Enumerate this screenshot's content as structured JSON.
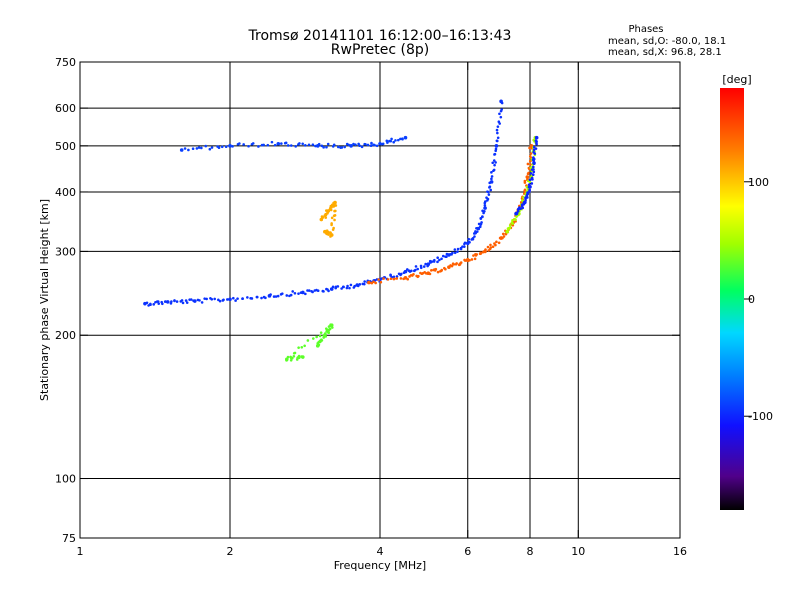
{
  "chart_data": {
    "type": "scatter",
    "title": "Tromsø 20141101 16:12:00–16:13:43",
    "subtitle": "RwPretec (8p)",
    "xlabel": "Frequency [MHz]",
    "ylabel": "Stationary phase Virtual Height [km]",
    "xscale": "log",
    "yscale": "log",
    "xlim": [
      1,
      16
    ],
    "ylim": [
      75,
      750
    ],
    "x_ticks": [
      1,
      2,
      4,
      6,
      8,
      10,
      16
    ],
    "x_tick_labels": [
      "1",
      "2",
      "4",
      "6",
      "8",
      "10",
      "16"
    ],
    "y_ticks": [
      75,
      100,
      200,
      300,
      400,
      500,
      600,
      750
    ],
    "y_tick_labels": [
      "75",
      "100",
      "200",
      "300",
      "400",
      "500",
      "600",
      "750"
    ],
    "grid_x": [
      2,
      4,
      6,
      8,
      10
    ],
    "grid_y": [
      100,
      200,
      300,
      400,
      500,
      600
    ],
    "colorbar": {
      "label": "[deg]",
      "range": [
        -180,
        180
      ],
      "ticks": [
        100,
        0,
        -100
      ],
      "tick_labels": [
        "100",
        "0",
        "-100"
      ]
    },
    "stats": {
      "heading": "Phases",
      "line_o": "mean, sd,O: -80.0, 18.1",
      "line_x": "mean, sd,X:  96.8, 28.1"
    },
    "traces": [
      {
        "name": "F-layer O-mode trace (blue)",
        "phase_deg": -95,
        "points": [
          [
            1.35,
            233
          ],
          [
            1.5,
            235
          ],
          [
            1.7,
            236
          ],
          [
            2.0,
            238
          ],
          [
            2.4,
            242
          ],
          [
            2.8,
            246
          ],
          [
            3.2,
            250
          ],
          [
            3.6,
            255
          ],
          [
            4.0,
            262
          ],
          [
            4.5,
            272
          ],
          [
            5.0,
            282
          ],
          [
            5.5,
            295
          ],
          [
            6.0,
            312
          ],
          [
            6.3,
            335
          ],
          [
            6.5,
            370
          ],
          [
            6.7,
            420
          ],
          [
            6.85,
            500
          ],
          [
            7.0,
            620
          ]
        ]
      },
      {
        "name": "F-layer X-mode trace (orange)",
        "phase_deg": 140,
        "points": [
          [
            3.8,
            258
          ],
          [
            4.5,
            264
          ],
          [
            5.0,
            270
          ],
          [
            5.5,
            278
          ],
          [
            6.0,
            288
          ],
          [
            6.5,
            300
          ],
          [
            7.0,
            320
          ],
          [
            7.4,
            345
          ],
          [
            7.7,
            380
          ],
          [
            7.9,
            430
          ],
          [
            8.05,
            500
          ]
        ]
      },
      {
        "name": "X-mode tail (green)",
        "phase_deg": 50,
        "points": [
          [
            7.2,
            330
          ],
          [
            7.6,
            360
          ],
          [
            7.9,
            400
          ],
          [
            8.1,
            450
          ],
          [
            8.2,
            520
          ]
        ]
      },
      {
        "name": "Multi-hop echoes (blue)",
        "phase_deg": -90,
        "points": [
          [
            1.6,
            490
          ],
          [
            2.0,
            500
          ],
          [
            2.5,
            505
          ],
          [
            3.0,
            500
          ],
          [
            3.5,
            500
          ],
          [
            4.0,
            505
          ],
          [
            4.5,
            520
          ]
        ]
      },
      {
        "name": "Late blue trace",
        "phase_deg": -100,
        "points": [
          [
            7.5,
            360
          ],
          [
            7.8,
            380
          ],
          [
            8.0,
            410
          ],
          [
            8.15,
            460
          ],
          [
            8.25,
            520
          ]
        ]
      },
      {
        "name": "Yellow cluster",
        "phase_deg": 110,
        "points": [
          [
            3.05,
            350
          ],
          [
            3.15,
            365
          ],
          [
            3.25,
            380
          ],
          [
            3.2,
            325
          ],
          [
            3.1,
            330
          ]
        ]
      },
      {
        "name": "Green cluster",
        "phase_deg": 30,
        "points": [
          [
            3.0,
            190
          ],
          [
            3.1,
            200
          ],
          [
            3.2,
            210
          ],
          [
            2.6,
            178
          ],
          [
            2.8,
            180
          ]
        ]
      }
    ]
  }
}
